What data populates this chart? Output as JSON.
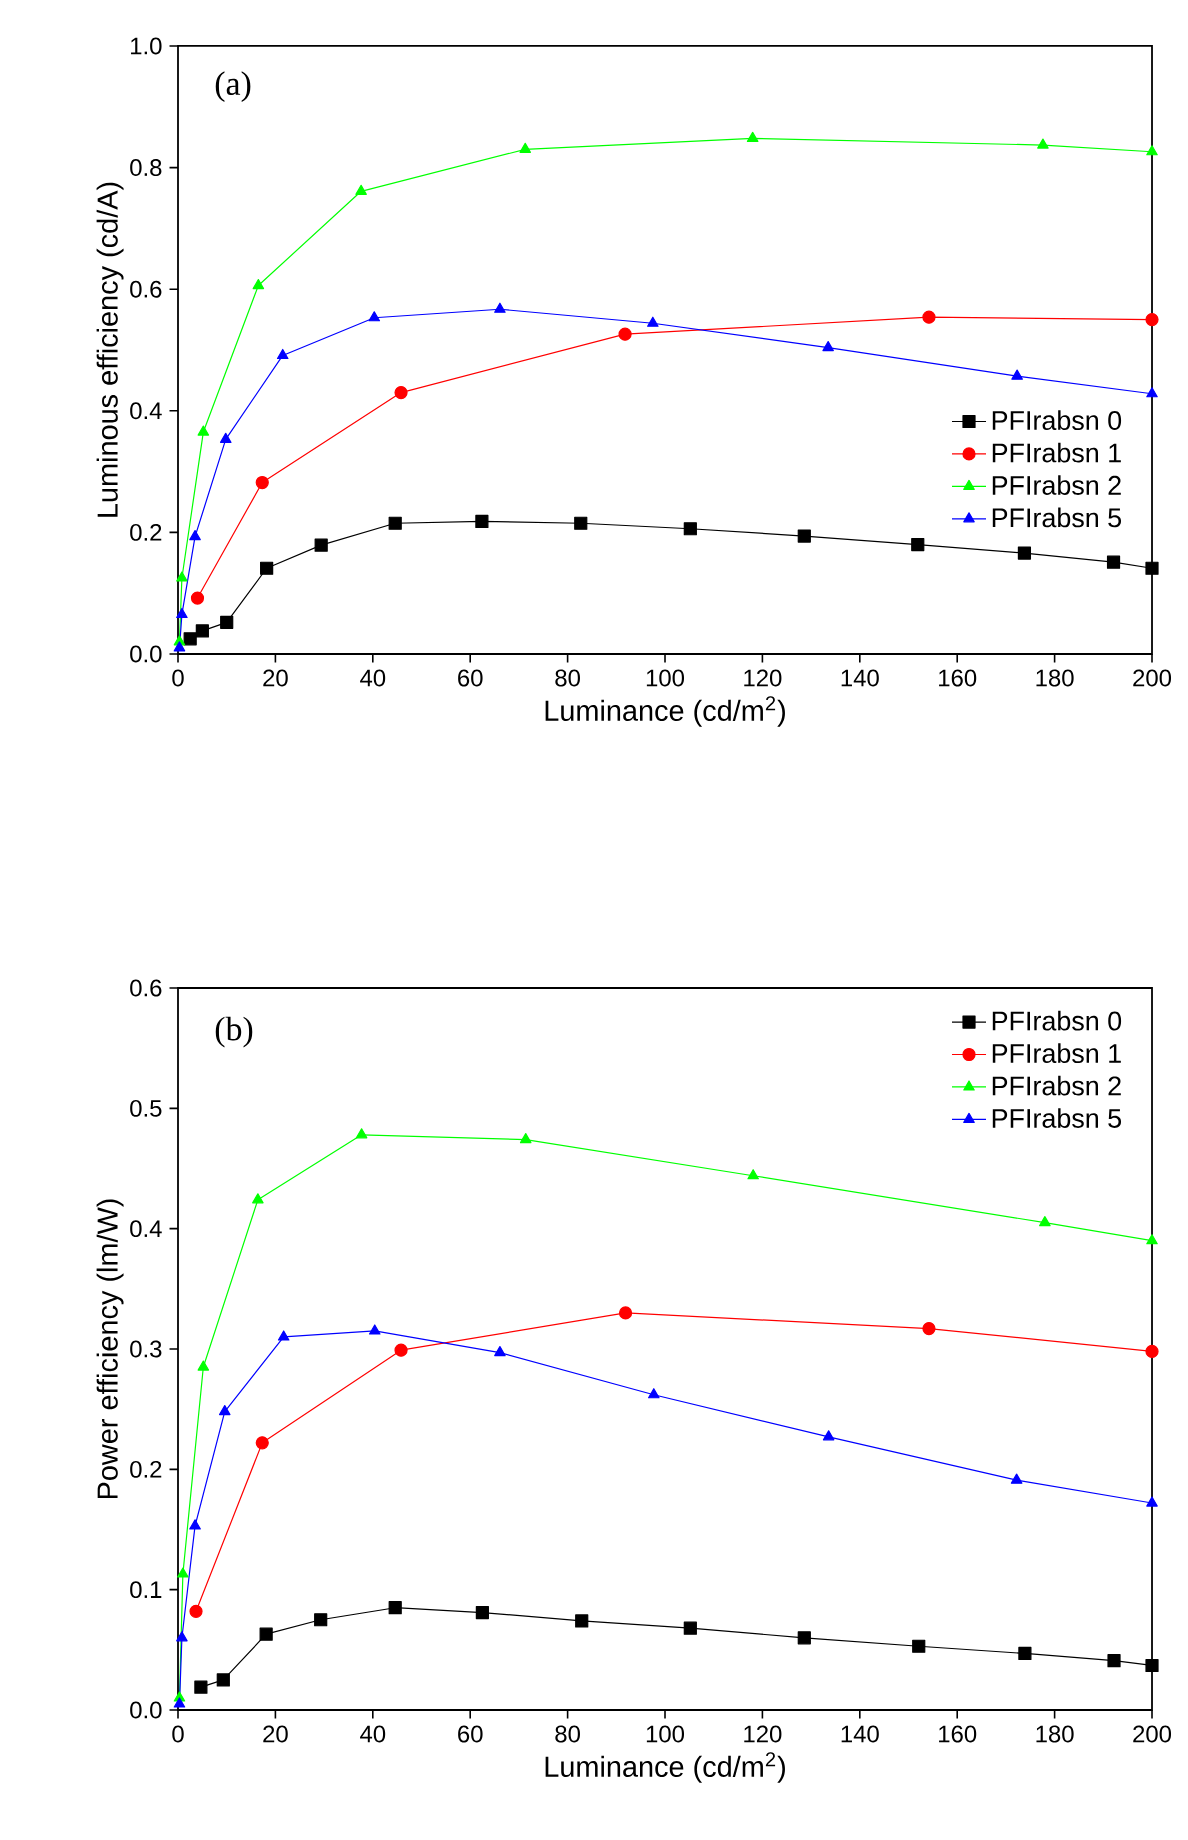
{
  "chart_data": [
    {
      "type": "line",
      "xlabel": "Luminance (cd/m$^{2}$)",
      "ylabel": "Luminous efficiency (cd/A)",
      "annotations": [
        "(a)"
      ],
      "xlim": [
        0,
        200
      ],
      "ylim": [
        0,
        1.0
      ],
      "xticks": [
        0,
        20,
        40,
        60,
        80,
        100,
        120,
        140,
        160,
        180,
        200
      ],
      "yticks": [
        {
          "value": 0,
          "label": "0.0"
        },
        {
          "value": 0.2,
          "label": "0.2"
        },
        {
          "value": 0.4,
          "label": "0.4"
        },
        {
          "value": 0.6,
          "label": "0.6"
        },
        {
          "value": 0.8,
          "label": "0.8"
        },
        {
          "value": 1.0,
          "label": "1.0"
        }
      ],
      "legend": "bottom right",
      "line_style": "solid",
      "series": [
        {
          "name": "PFIrabsn 0",
          "color": "#000000",
          "marker": "square",
          "x": [
            2.5,
            5,
            10,
            18.2,
            29.4,
            44.6,
            62.4,
            82.7,
            105.2,
            128.6,
            151.9,
            173.8,
            192.1,
            200
          ],
          "values": [
            0.025,
            0.038,
            0.052,
            0.141,
            0.179,
            0.215,
            0.218,
            0.215,
            0.206,
            0.194,
            0.18,
            0.166,
            0.151,
            0.141
          ]
        },
        {
          "name": "PFIrabsn 1",
          "color": "#ff0000",
          "marker": "circle",
          "x": [
            4,
            17.3,
            45.8,
            91.8,
            154.2,
            200
          ],
          "values": [
            0.092,
            0.282,
            0.43,
            0.526,
            0.554,
            0.55
          ]
        },
        {
          "name": "PFIrabsn 2",
          "color": "#00ff00",
          "marker": "triangle",
          "x": [
            0.3,
            0.8,
            5.2,
            16.5,
            37.6,
            71.3,
            118,
            177.6,
            200
          ],
          "values": [
            0.02,
            0.125,
            0.365,
            0.606,
            0.761,
            0.83,
            0.848,
            0.837,
            0.826
          ]
        },
        {
          "name": "PFIrabsn 5",
          "color": "#0000ff",
          "marker": "triangle-down",
          "x": [
            0.3,
            0.8,
            3.5,
            9.8,
            21.5,
            40.3,
            66.1,
            97.5,
            133.5,
            172.3,
            200
          ],
          "values": [
            0.01,
            0.065,
            0.193,
            0.353,
            0.491,
            0.553,
            0.567,
            0.544,
            0.504,
            0.457,
            0.428
          ]
        }
      ]
    },
    {
      "type": "line",
      "xlabel": "Luminance (cd/m$^{2}$)",
      "ylabel": "Power efficiency (lm/W)",
      "annotations": [
        "(b)"
      ],
      "xlim": [
        0,
        200
      ],
      "ylim": [
        0,
        0.6
      ],
      "xticks": [
        0,
        20,
        40,
        60,
        80,
        100,
        120,
        140,
        160,
        180,
        200
      ],
      "yticks": [
        {
          "value": 0,
          "label": "0.0"
        },
        {
          "value": 0.1,
          "label": "0.1"
        },
        {
          "value": 0.2,
          "label": "0.2"
        },
        {
          "value": 0.3,
          "label": "0.3"
        },
        {
          "value": 0.4,
          "label": "0.4"
        },
        {
          "value": 0.5,
          "label": "0.5"
        },
        {
          "value": 0.6,
          "label": "0.6"
        }
      ],
      "legend": "top right",
      "line_style": "solid",
      "series": [
        {
          "name": "PFIrabsn 0",
          "color": "#000000",
          "marker": "square",
          "x": [
            4.7,
            9.3,
            18.1,
            29.3,
            44.6,
            62.5,
            82.9,
            105.2,
            128.6,
            152.1,
            173.9,
            192.2,
            200
          ],
          "values": [
            0.019,
            0.025,
            0.063,
            0.075,
            0.085,
            0.081,
            0.074,
            0.068,
            0.06,
            0.053,
            0.047,
            0.041,
            0.037
          ]
        },
        {
          "name": "PFIrabsn 1",
          "color": "#ff0000",
          "marker": "circle",
          "x": [
            3.7,
            17.3,
            45.8,
            91.9,
            154.2,
            200
          ],
          "values": [
            0.082,
            0.222,
            0.299,
            0.33,
            0.317,
            0.298
          ]
        },
        {
          "name": "PFIrabsn 2",
          "color": "#00ff00",
          "marker": "triangle",
          "x": [
            0.3,
            1,
            5.2,
            16.4,
            37.7,
            71.4,
            118.1,
            178,
            200
          ],
          "values": [
            0.01,
            0.113,
            0.285,
            0.424,
            0.478,
            0.474,
            0.444,
            0.405,
            0.39
          ]
        },
        {
          "name": "PFIrabsn 5",
          "color": "#0000ff",
          "marker": "triangle-down",
          "x": [
            0.3,
            0.8,
            3.5,
            9.6,
            21.7,
            40.4,
            66.1,
            97.7,
            133.6,
            172.2,
            200
          ],
          "values": [
            0.005,
            0.06,
            0.153,
            0.248,
            0.31,
            0.315,
            0.297,
            0.262,
            0.227,
            0.191,
            0.172
          ]
        }
      ]
    }
  ]
}
